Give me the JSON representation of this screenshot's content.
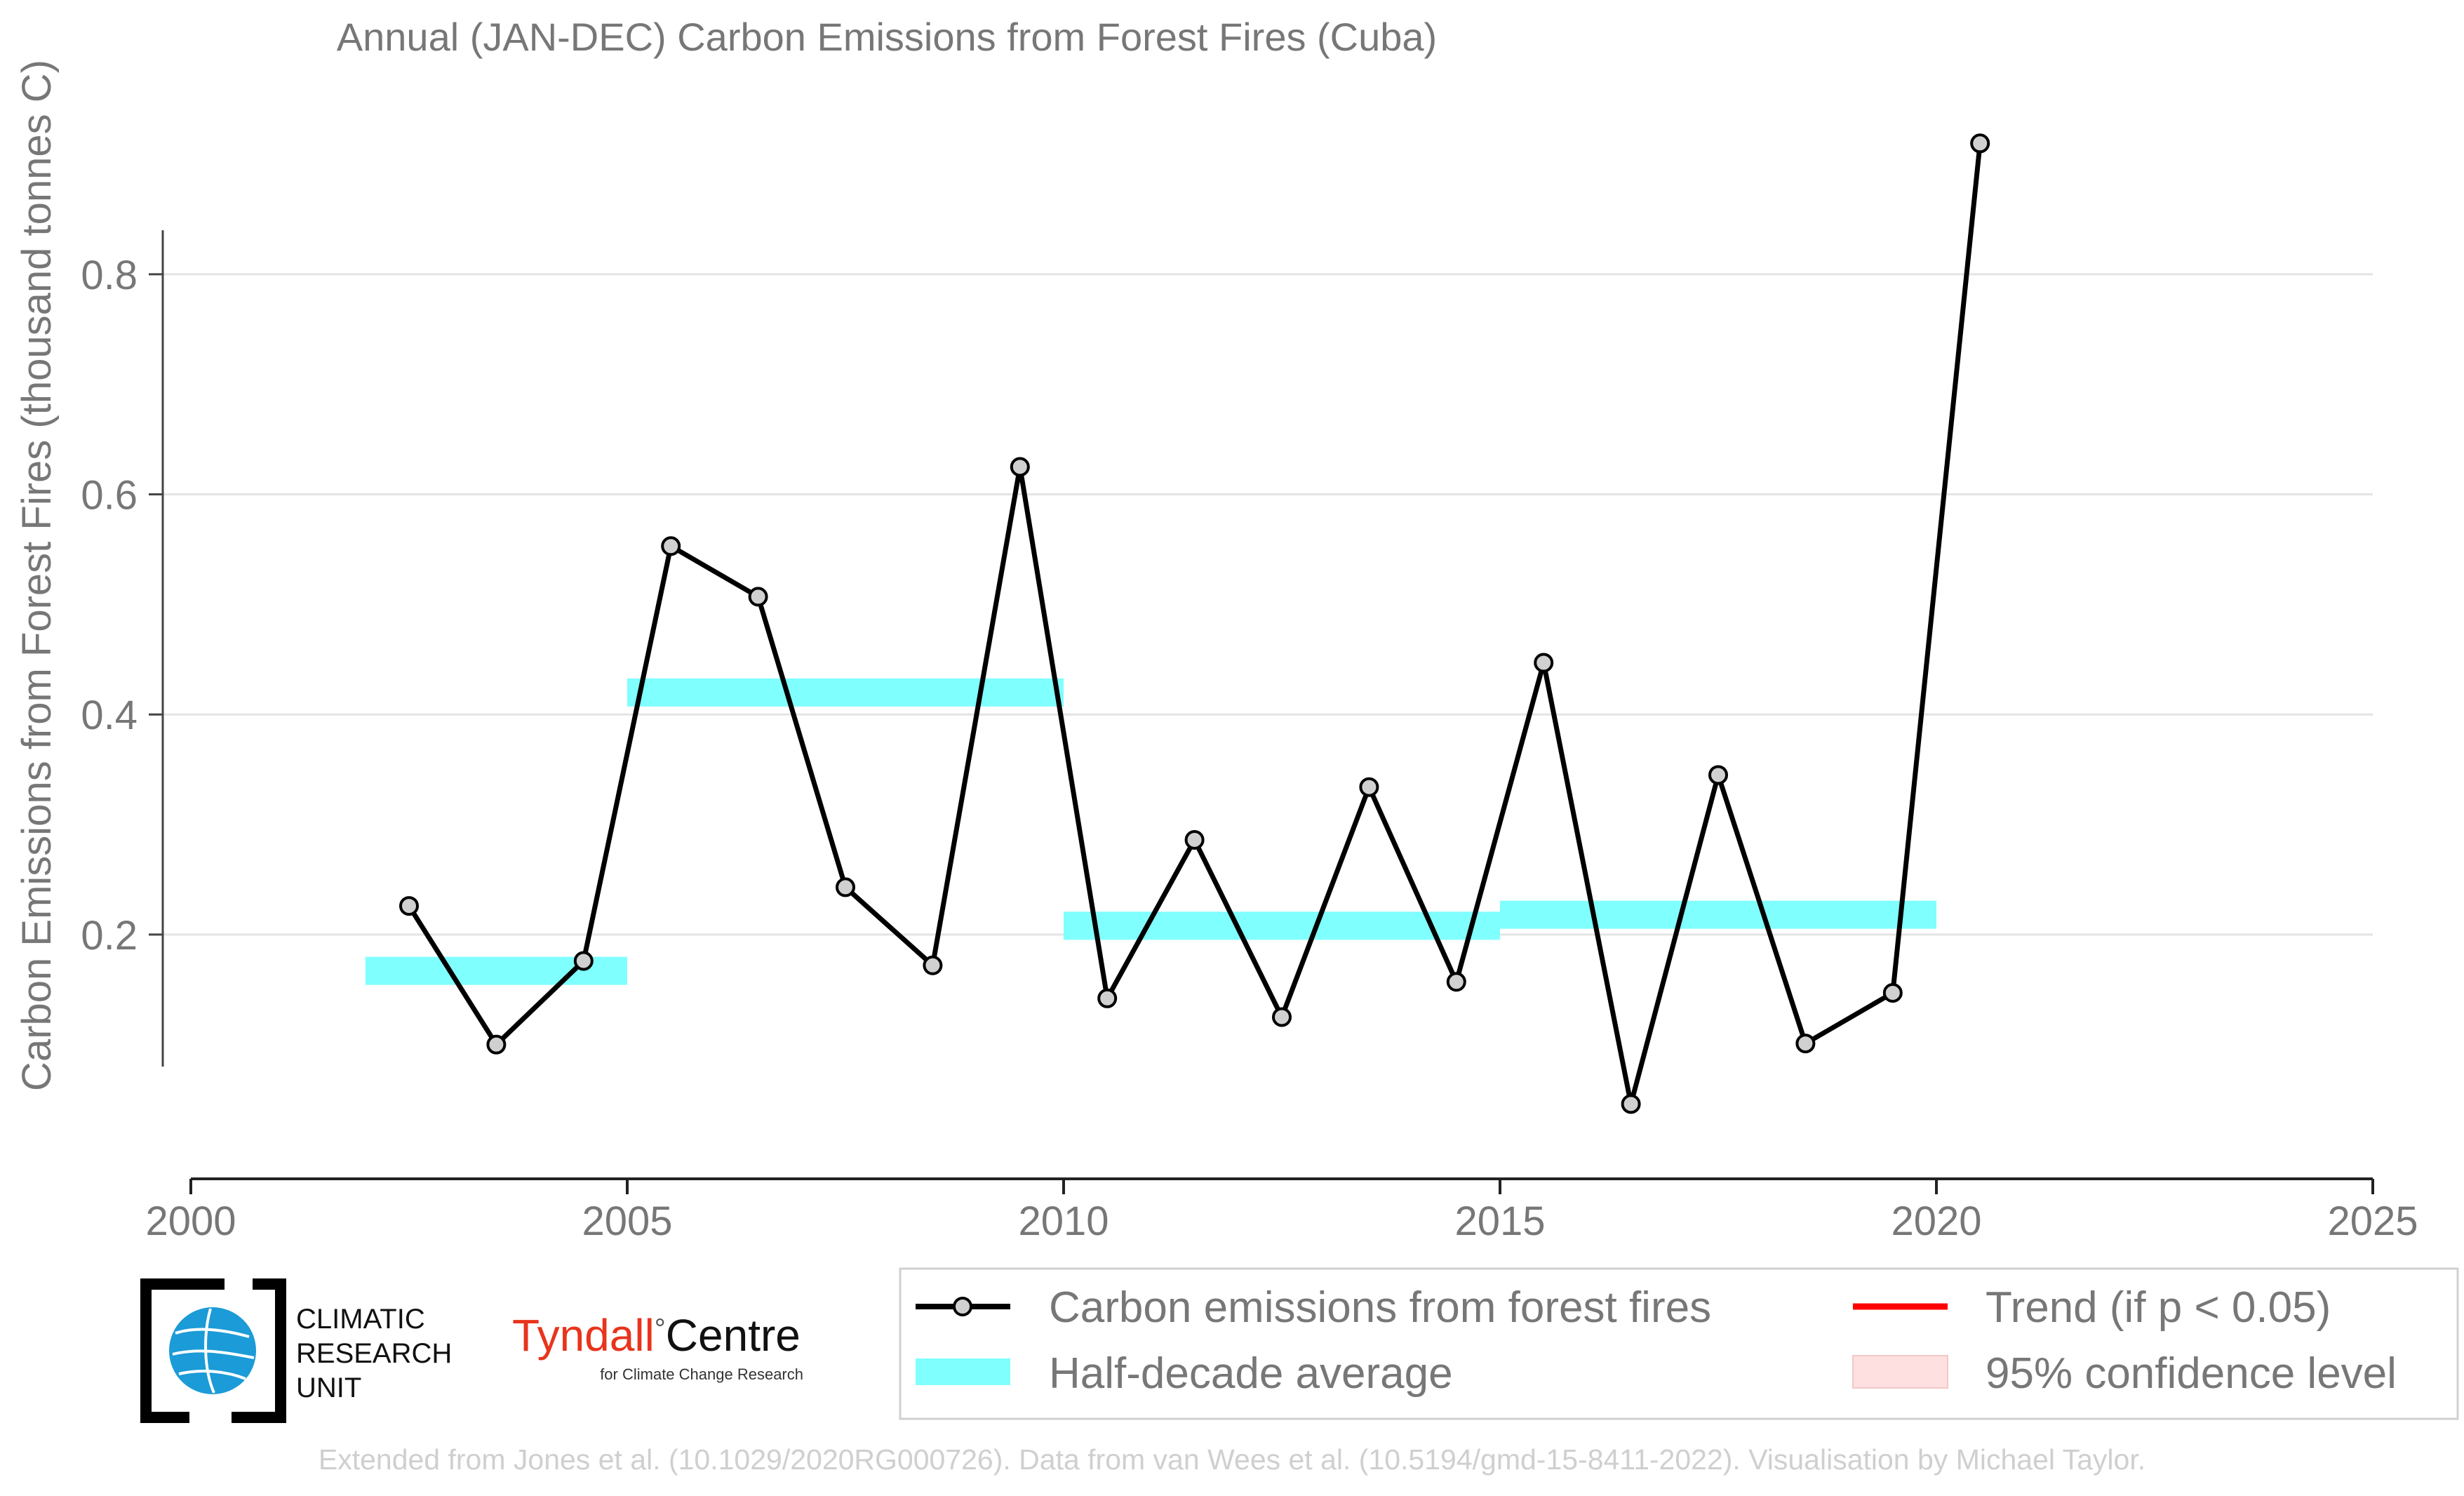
{
  "chart_data": {
    "type": "line",
    "title": "Annual (JAN-DEC) Carbon Emissions from Forest Fires (Cuba)",
    "ylabel": "Carbon Emissions from Forest Fires (thousand tonnes C)",
    "xlim": [
      2000,
      2025
    ],
    "ylim": [
      -0.022,
      0.96
    ],
    "x_ticks": [
      2000,
      2005,
      2010,
      2015,
      2020,
      2025
    ],
    "y_ticks": [
      0.2,
      0.4,
      0.6,
      0.8
    ],
    "grid": "horizontal",
    "legend_placement": "bottom",
    "series": [
      {
        "name": "Carbon emissions from forest fires",
        "type": "line",
        "color": "#000000",
        "marker_fill": "#d0d0d0",
        "x": [
          2002.5,
          2003.5,
          2004.5,
          2005.5,
          2006.5,
          2007.5,
          2008.5,
          2009.5,
          2010.5,
          2011.5,
          2012.5,
          2013.5,
          2014.5,
          2015.5,
          2016.5,
          2017.5,
          2018.5,
          2019.5,
          2020.5
        ],
        "values": [
          0.226,
          0.1,
          0.176,
          0.553,
          0.507,
          0.243,
          0.172,
          0.625,
          0.142,
          0.286,
          0.125,
          0.334,
          0.157,
          0.447,
          0.046,
          0.345,
          0.101,
          0.147,
          0.919
        ]
      },
      {
        "name": "Half-decade average",
        "type": "step",
        "color": "#80ffff",
        "segments": [
          {
            "x0": 2002,
            "x1": 2005,
            "y": 0.167
          },
          {
            "x0": 2005,
            "x1": 2010,
            "y": 0.42
          },
          {
            "x0": 2010,
            "x1": 2015,
            "y": 0.208
          },
          {
            "x0": 2015,
            "x1": 2020,
            "y": 0.218
          }
        ]
      }
    ],
    "legend": [
      {
        "label": "Carbon emissions from forest fires",
        "kind": "line-marker",
        "color": "#000000"
      },
      {
        "label": "Trend (if p < 0.05)",
        "kind": "line",
        "color": "#ff0000"
      },
      {
        "label": "Half-decade average",
        "kind": "band",
        "color": "#80ffff"
      },
      {
        "label": "95% confidence level",
        "kind": "patch",
        "color": "#ffe0e0"
      }
    ]
  },
  "logos": {
    "cru_lines": [
      "CLIMATIC",
      "RESEARCH",
      "UNIT"
    ],
    "tyndall_main": "Tyndall",
    "tyndall_degree": "°",
    "tyndall_centre": "Centre",
    "tyndall_sub": "for Climate Change Research",
    "tyndall_color": "#e8341c"
  },
  "credit": "Extended from Jones et al. (10.1029/2020RG000726). Data from van Wees et al. (10.5194/gmd-15-8411-2022). Visualisation by Michael Taylor."
}
